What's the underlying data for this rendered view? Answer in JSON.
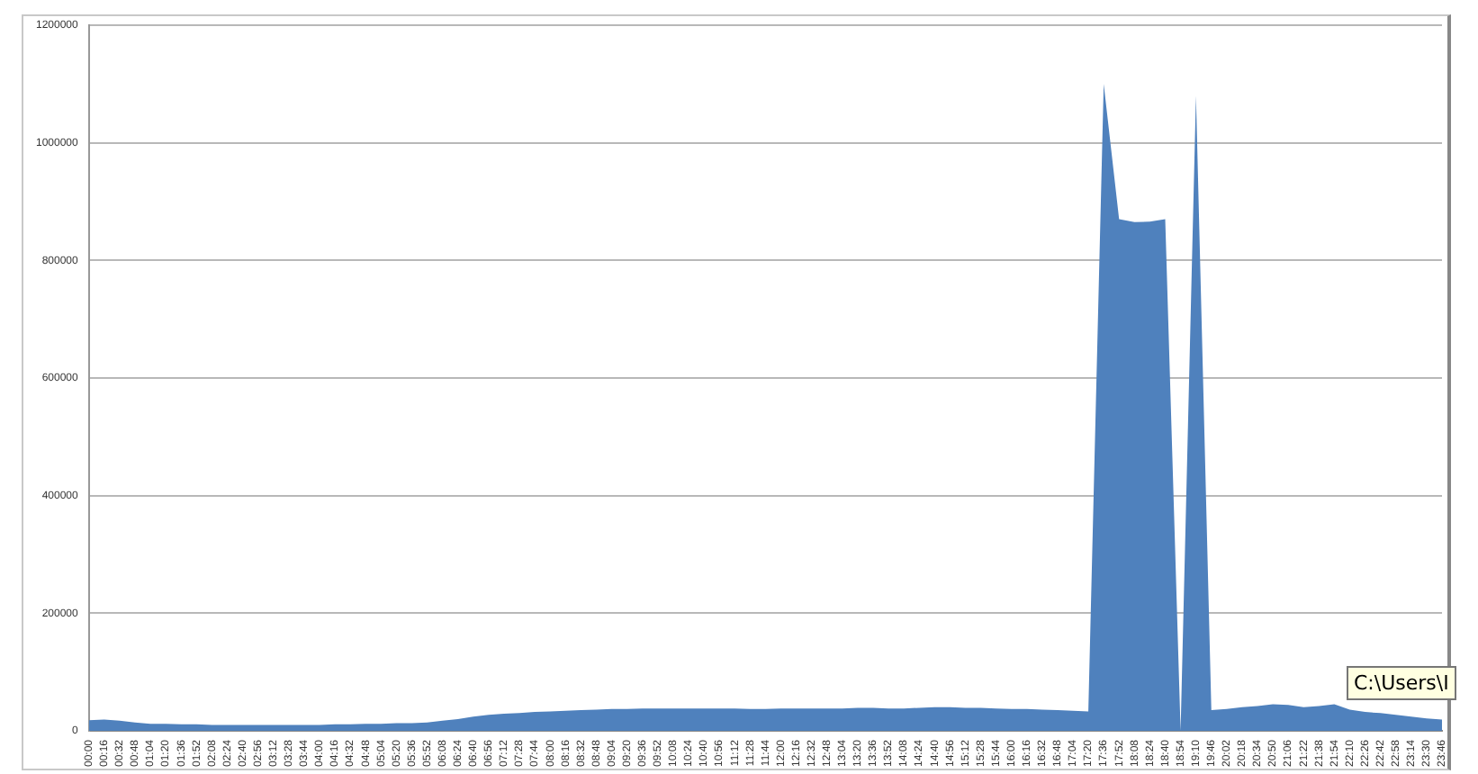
{
  "chart_data": {
    "type": "area",
    "categories": [
      "00:00",
      "00:16",
      "00:32",
      "00:48",
      "01:04",
      "01:20",
      "01:36",
      "01:52",
      "02:08",
      "02:24",
      "02:40",
      "02:56",
      "03:12",
      "03:28",
      "03:44",
      "04:00",
      "04:16",
      "04:32",
      "04:48",
      "05:04",
      "05:20",
      "05:36",
      "05:52",
      "06:08",
      "06:24",
      "06:40",
      "06:56",
      "07:12",
      "07:28",
      "07:44",
      "08:00",
      "08:16",
      "08:32",
      "08:48",
      "09:04",
      "09:20",
      "09:36",
      "09:52",
      "10:08",
      "10:24",
      "10:40",
      "10:56",
      "11:12",
      "11:28",
      "11:44",
      "12:00",
      "12:16",
      "12:32",
      "12:48",
      "13:04",
      "13:20",
      "13:36",
      "13:52",
      "14:08",
      "14:24",
      "14:40",
      "14:56",
      "15:12",
      "15:28",
      "15:44",
      "16:00",
      "16:16",
      "16:32",
      "16:48",
      "17:04",
      "17:20",
      "17:36",
      "17:52",
      "18:08",
      "18:24",
      "18:40",
      "18:54",
      "19:10",
      "19:46",
      "20:02",
      "20:18",
      "20:34",
      "20:50",
      "21:06",
      "21:22",
      "21:38",
      "21:54",
      "22:10",
      "22:26",
      "22:42",
      "22:58",
      "23:14",
      "23:30",
      "23:46"
    ],
    "series": [
      {
        "color": "#4f81bd",
        "values": [
          18000,
          19000,
          17000,
          14000,
          12000,
          12000,
          11000,
          11000,
          10000,
          10000,
          10000,
          10000,
          10000,
          10000,
          10000,
          10000,
          11000,
          11000,
          12000,
          12000,
          13000,
          13000,
          14000,
          17000,
          20000,
          24000,
          27000,
          29000,
          30000,
          32000,
          33000,
          34000,
          35000,
          36000,
          37000,
          37000,
          38000,
          38000,
          38000,
          38000,
          38000,
          38000,
          38000,
          37000,
          37000,
          38000,
          38000,
          38000,
          38000,
          38000,
          39000,
          39000,
          38000,
          38000,
          39000,
          40000,
          40000,
          39000,
          39000,
          38000,
          37000,
          37000,
          36000,
          35000,
          34000,
          33000,
          1100000,
          870000,
          865000,
          866000,
          870000,
          0,
          1080000,
          35000,
          37000,
          40000,
          42000,
          45000,
          44000,
          40000,
          42000,
          45000,
          36000,
          32000,
          30000,
          27000,
          24000,
          21000,
          19000
        ]
      }
    ],
    "ylim": [
      0,
      1200000
    ],
    "yticks": [
      0,
      200000,
      400000,
      600000,
      800000,
      1000000,
      1200000
    ],
    "grid": "y",
    "legend": false,
    "marker": "none",
    "annotations": [
      "C:\\Users\\I"
    ]
  }
}
